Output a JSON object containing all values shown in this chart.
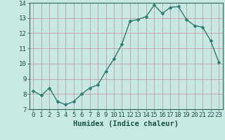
{
  "x": [
    0,
    1,
    2,
    3,
    4,
    5,
    6,
    7,
    8,
    9,
    10,
    11,
    12,
    13,
    14,
    15,
    16,
    17,
    18,
    19,
    20,
    21,
    22,
    23
  ],
  "y": [
    8.2,
    7.9,
    8.4,
    7.5,
    7.3,
    7.5,
    8.0,
    8.4,
    8.6,
    9.5,
    10.3,
    11.3,
    12.8,
    12.9,
    13.1,
    13.85,
    13.3,
    13.7,
    13.75,
    12.9,
    12.5,
    12.4,
    11.5,
    10.1
  ],
  "line_color": "#2a7c6f",
  "marker": "D",
  "marker_size": 2.5,
  "bg_color": "#c8e8e4",
  "grid_color": "#c0a0a0",
  "xlabel": "Humidex (Indice chaleur)",
  "ylim": [
    7,
    14
  ],
  "xlim": [
    -0.5,
    23.5
  ],
  "yticks": [
    7,
    8,
    9,
    10,
    11,
    12,
    13,
    14
  ],
  "xticks": [
    0,
    1,
    2,
    3,
    4,
    5,
    6,
    7,
    8,
    9,
    10,
    11,
    12,
    13,
    14,
    15,
    16,
    17,
    18,
    19,
    20,
    21,
    22,
    23
  ],
  "xlabel_fontsize": 7.5,
  "tick_fontsize": 6.5,
  "line_width": 1.0
}
